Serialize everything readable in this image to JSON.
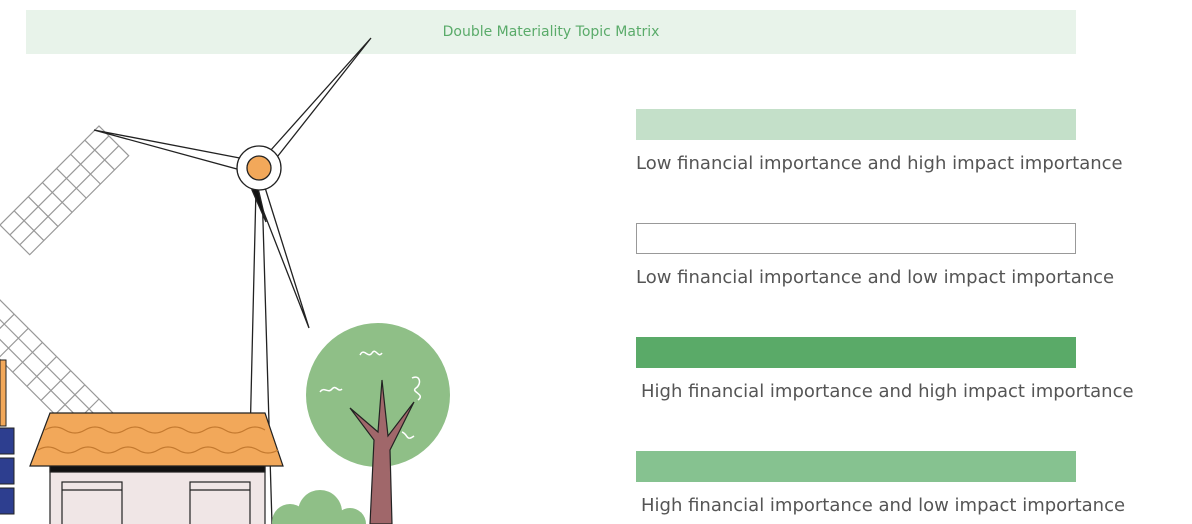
{
  "header": {
    "title": "Double Materiality Topic Matrix"
  },
  "legend": [
    {
      "label": "Low financial importance and high impact importance",
      "color": "#c4e0c9"
    },
    {
      "label": "Low financial importance and low impact importance",
      "color": "#ffffff"
    },
    {
      "label": "High financial importance and high impact importance",
      "color": "#5aaa68"
    },
    {
      "label": "High financial importance and low impact importance",
      "color": "#86c290"
    }
  ]
}
